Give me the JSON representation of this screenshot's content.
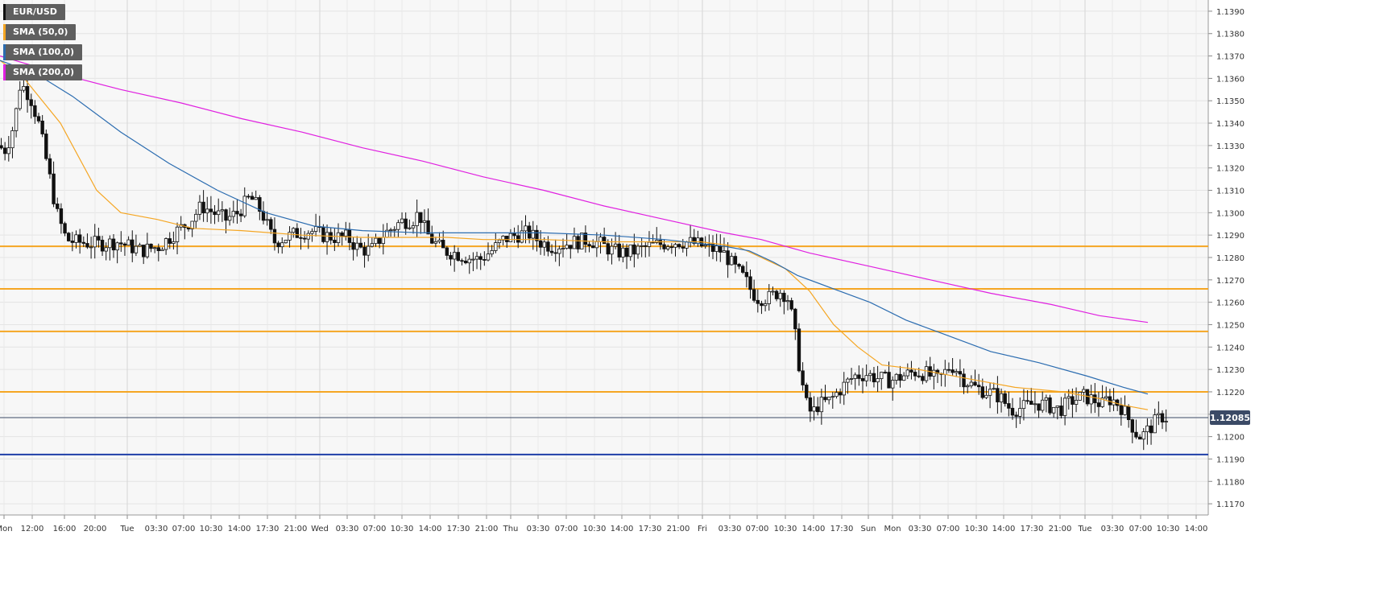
{
  "chart_data": {
    "type": "candlestick",
    "symbol": "EUR/USD",
    "ylim": [
      1.1165,
      1.1395
    ],
    "y_ticks": [
      "1.1390",
      "1.1380",
      "1.1370",
      "1.1360",
      "1.1350",
      "1.1340",
      "1.1330",
      "1.1320",
      "1.1310",
      "1.1300",
      "1.1290",
      "1.1280",
      "1.1270",
      "1.1260",
      "1.1250",
      "1.1240",
      "1.1230",
      "1.1220",
      "1.1210",
      "1.1200",
      "1.1190",
      "1.1180",
      "1.1170"
    ],
    "x_ticks": [
      "Mon",
      "12:00",
      "16:00",
      "20:00",
      "Tue",
      "03:30",
      "07:00",
      "10:30",
      "14:00",
      "17:30",
      "21:00",
      "Wed",
      "03:30",
      "07:00",
      "10:30",
      "14:00",
      "17:30",
      "21:00",
      "Thu",
      "03:30",
      "07:00",
      "10:30",
      "14:00",
      "17:30",
      "21:00",
      "Fri",
      "03:30",
      "07:00",
      "10:30",
      "14:00",
      "17:30",
      "Sun",
      "Mon",
      "03:30",
      "07:00",
      "10:30",
      "14:00",
      "17:30",
      "21:00",
      "Tue",
      "03:30",
      "07:00",
      "10:30",
      "14:00"
    ],
    "day_separators": [
      "Tue",
      "Wed",
      "Thu",
      "Fri",
      "Sun",
      "Mon",
      "Tue"
    ],
    "current_price": 1.12085,
    "current_price_label": "1.12085",
    "horizontal_levels": [
      {
        "value": 1.1285,
        "color": "#f5a623"
      },
      {
        "value": 1.1266,
        "color": "#f5a623"
      },
      {
        "value": 1.1247,
        "color": "#f5a623"
      },
      {
        "value": 1.122,
        "color": "#f5a623"
      },
      {
        "value": 1.1192,
        "color": "#1f3fa8"
      }
    ],
    "series": [
      {
        "name": "EUR/USD",
        "color": "#111111"
      },
      {
        "name": "SMA (50,0)",
        "color": "#f5a623",
        "points": [
          [
            0,
            1.1368
          ],
          [
            0.02,
            1.136
          ],
          [
            0.05,
            1.134
          ],
          [
            0.08,
            1.131
          ],
          [
            0.1,
            1.13
          ],
          [
            0.13,
            1.1297
          ],
          [
            0.16,
            1.1293
          ],
          [
            0.2,
            1.1292
          ],
          [
            0.25,
            1.129
          ],
          [
            0.3,
            1.1289
          ],
          [
            0.33,
            1.1289
          ],
          [
            0.37,
            1.1289
          ],
          [
            0.4,
            1.1288
          ],
          [
            0.45,
            1.1288
          ],
          [
            0.5,
            1.1287
          ],
          [
            0.55,
            1.1287
          ],
          [
            0.58,
            1.1287
          ],
          [
            0.61,
            1.1285
          ],
          [
            0.63,
            1.128
          ],
          [
            0.65,
            1.1275
          ],
          [
            0.67,
            1.1265
          ],
          [
            0.69,
            1.125
          ],
          [
            0.71,
            1.124
          ],
          [
            0.73,
            1.1232
          ],
          [
            0.76,
            1.123
          ],
          [
            0.8,
            1.1226
          ],
          [
            0.84,
            1.1222
          ],
          [
            0.88,
            1.122
          ],
          [
            0.91,
            1.1217
          ],
          [
            0.93,
            1.1214
          ],
          [
            0.95,
            1.1212
          ]
        ]
      },
      {
        "name": "SMA (100,0)",
        "color": "#2b6cb0",
        "points": [
          [
            0,
            1.1368
          ],
          [
            0.03,
            1.1362
          ],
          [
            0.06,
            1.1352
          ],
          [
            0.1,
            1.1336
          ],
          [
            0.14,
            1.1322
          ],
          [
            0.18,
            1.131
          ],
          [
            0.22,
            1.13
          ],
          [
            0.26,
            1.1294
          ],
          [
            0.3,
            1.1292
          ],
          [
            0.35,
            1.1291
          ],
          [
            0.4,
            1.1291
          ],
          [
            0.45,
            1.1291
          ],
          [
            0.5,
            1.129
          ],
          [
            0.55,
            1.1288
          ],
          [
            0.6,
            1.1285
          ],
          [
            0.62,
            1.1283
          ],
          [
            0.64,
            1.1278
          ],
          [
            0.66,
            1.1272
          ],
          [
            0.69,
            1.1266
          ],
          [
            0.72,
            1.126
          ],
          [
            0.75,
            1.1252
          ],
          [
            0.78,
            1.1246
          ],
          [
            0.82,
            1.1238
          ],
          [
            0.86,
            1.1233
          ],
          [
            0.9,
            1.1227
          ],
          [
            0.93,
            1.1222
          ],
          [
            0.95,
            1.1219
          ]
        ]
      },
      {
        "name": "SMA (200,0)",
        "color": "#e020e0",
        "points": [
          [
            0,
            1.137
          ],
          [
            0.05,
            1.1362
          ],
          [
            0.1,
            1.1355
          ],
          [
            0.15,
            1.1349
          ],
          [
            0.2,
            1.1342
          ],
          [
            0.25,
            1.1336
          ],
          [
            0.3,
            1.1329
          ],
          [
            0.35,
            1.1323
          ],
          [
            0.4,
            1.1316
          ],
          [
            0.45,
            1.131
          ],
          [
            0.5,
            1.1303
          ],
          [
            0.55,
            1.1297
          ],
          [
            0.6,
            1.1291
          ],
          [
            0.63,
            1.1288
          ],
          [
            0.65,
            1.1285
          ],
          [
            0.67,
            1.1282
          ],
          [
            0.72,
            1.1276
          ],
          [
            0.77,
            1.127
          ],
          [
            0.82,
            1.1264
          ],
          [
            0.87,
            1.1259
          ],
          [
            0.91,
            1.1254
          ],
          [
            0.95,
            1.1251
          ]
        ]
      }
    ]
  },
  "legend": [
    {
      "label": "EUR/USD",
      "color": "#111111"
    },
    {
      "label": "SMA (50,0)",
      "color": "#f5a623"
    },
    {
      "label": "SMA (100,0)",
      "color": "#2b6cb0"
    },
    {
      "label": "SMA (200,0)",
      "color": "#e020e0"
    }
  ]
}
